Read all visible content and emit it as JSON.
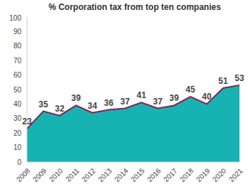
{
  "chart_data": {
    "type": "area",
    "title": "% Corporation tax from top ten companies",
    "categories": [
      "2008",
      "2009",
      "2010",
      "2011",
      "2012",
      "2013",
      "2014",
      "2015",
      "2016",
      "2017",
      "2018",
      "2019",
      "2020",
      "2021"
    ],
    "values": [
      23,
      35,
      32,
      39,
      34,
      36,
      37,
      41,
      37,
      39,
      45,
      40,
      51,
      53
    ],
    "color": "#17b3b3",
    "ylim": [
      0,
      100
    ],
    "yticks": [
      0,
      10,
      20,
      30,
      40,
      50,
      60,
      70,
      80,
      90,
      100
    ],
    "grid": false,
    "data_labels": true
  }
}
